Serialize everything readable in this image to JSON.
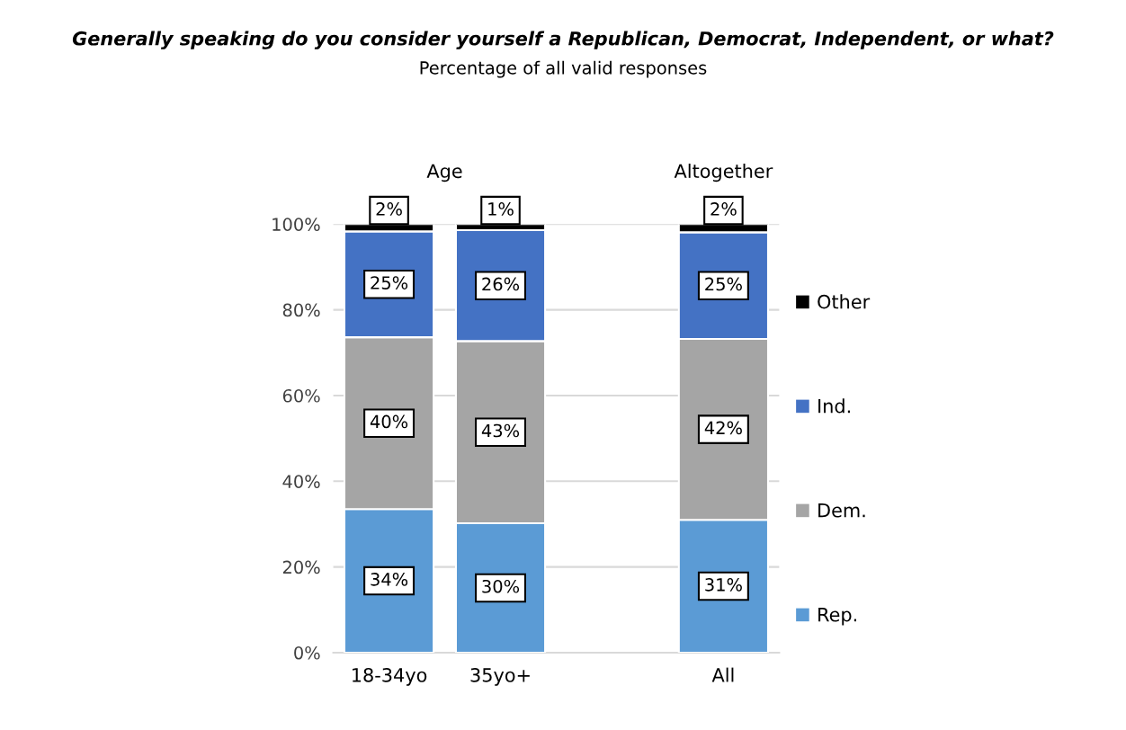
{
  "chart_data": {
    "type": "bar",
    "stacked": true,
    "title": "Generally speaking do you consider yourself a Republican, Democrat, Independent, or what?",
    "subtitle": "Percentage of all valid responses",
    "categories": [
      "18-34yo",
      "35yo+",
      null,
      "All"
    ],
    "series": [
      {
        "name": "Rep.",
        "color": "#5b9bd5",
        "values": [
          33.5,
          30.2,
          null,
          31.0
        ],
        "value_labels": [
          "34%",
          "30%",
          null,
          "31%"
        ]
      },
      {
        "name": "Dem.",
        "color": "#a5a5a5",
        "values": [
          40.1,
          42.5,
          null,
          42.2
        ],
        "value_labels": [
          "40%",
          "43%",
          null,
          "42%"
        ]
      },
      {
        "name": "Ind.",
        "color": "#4472c4",
        "values": [
          24.7,
          25.9,
          null,
          24.9
        ],
        "value_labels": [
          "25%",
          "26%",
          null,
          "25%"
        ]
      },
      {
        "name": "Other",
        "color": "#000000",
        "values": [
          1.7,
          1.4,
          null,
          1.9
        ],
        "value_labels": [
          "2%",
          "1%",
          null,
          "2%"
        ]
      }
    ],
    "ylim": [
      0,
      100
    ],
    "yticks": [
      {
        "value": 0,
        "label": "0%"
      },
      {
        "value": 20,
        "label": "20%"
      },
      {
        "value": 40,
        "label": "40%"
      },
      {
        "value": 60,
        "label": "60%"
      },
      {
        "value": 80,
        "label": "80%"
      },
      {
        "value": 100,
        "label": "100%"
      }
    ],
    "grid": "y",
    "legend": "right",
    "annotations": [
      "Age",
      "Altogether"
    ]
  }
}
